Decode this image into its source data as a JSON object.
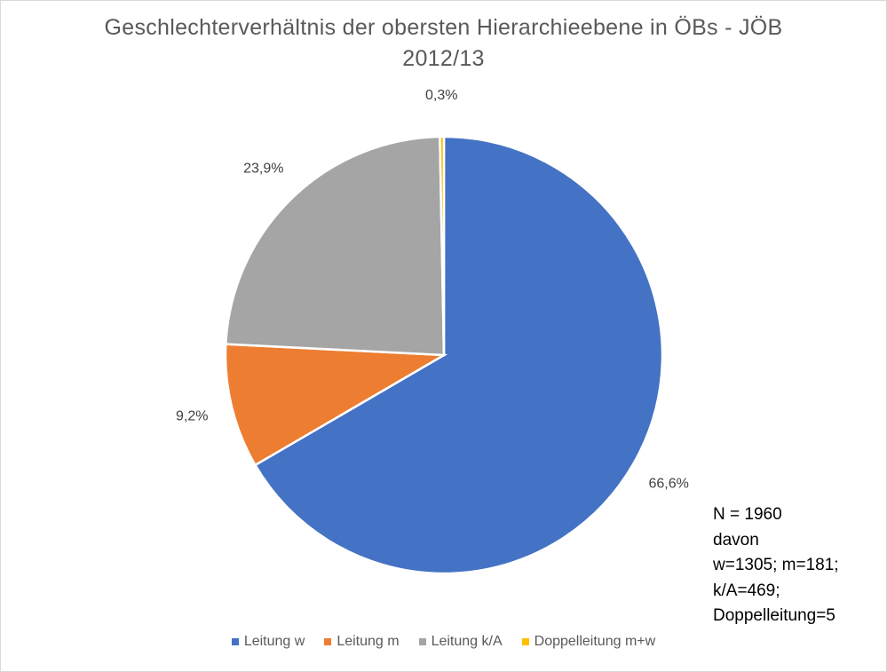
{
  "chart_data": {
    "type": "pie",
    "title": [
      "Geschlechterverhältnis der obersten Hierarchieebene in ÖBs - JÖB",
      "2012/13"
    ],
    "slices": [
      {
        "name": "Leitung w",
        "value": 66.6,
        "label": "66,6%",
        "color": "#4472C4"
      },
      {
        "name": "Leitung m",
        "value": 9.2,
        "label": "9,2%",
        "color": "#ED7D31"
      },
      {
        "name": "Leitung k/A",
        "value": 23.9,
        "label": "23,9%",
        "color": "#A5A5A5"
      },
      {
        "name": "Doppelleitung m+w",
        "value": 0.3,
        "label": "0,3%",
        "color": "#FFC000"
      }
    ],
    "legend_position": "bottom",
    "annotation": [
      "N = 1960",
      "davon",
      "w=1305; m=181;",
      "k/A=469;",
      "Doppelleitung=5"
    ]
  }
}
